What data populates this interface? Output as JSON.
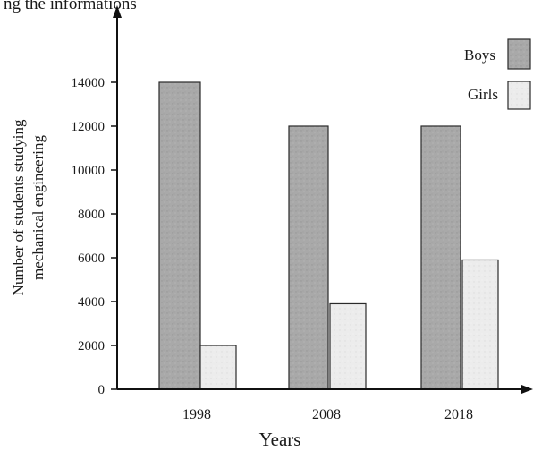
{
  "header_fragment": "ng the informations",
  "chart_data": {
    "type": "bar",
    "title": "",
    "xlabel": "Years",
    "ylabel": "Number of students studying mechanical engineering",
    "ylabel_lines": [
      "Number of students studying",
      "mechanical engineering"
    ],
    "categories": [
      "1998",
      "2008",
      "2018"
    ],
    "ylim": [
      0,
      14000
    ],
    "yticks": [
      "0",
      "2000",
      "4000",
      "6000",
      "8000",
      "10000",
      "12000",
      "14000"
    ],
    "grid": false,
    "legend_position": "top-right",
    "series": [
      {
        "name": "Boys",
        "values": [
          14000,
          12000,
          12000
        ],
        "color": "#a8a8a8"
      },
      {
        "name": "Girls",
        "values": [
          2000,
          3900,
          5900
        ],
        "color": "#ebebeb"
      }
    ]
  }
}
